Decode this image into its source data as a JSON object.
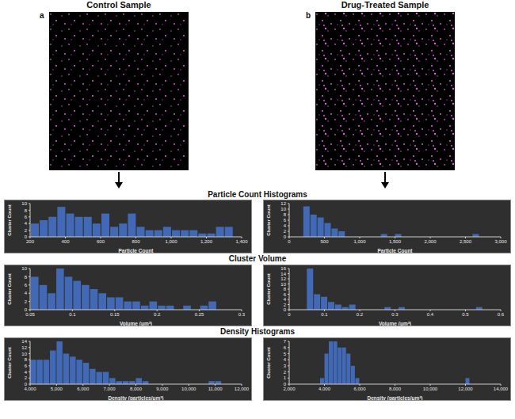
{
  "panels": [
    {
      "label": "a",
      "title": "Control Sample"
    },
    {
      "label": "b",
      "title": "Drug-Treated Sample"
    }
  ],
  "sections": [
    "Particle Count Histograms",
    "Cluster Volume",
    "Density Histograms"
  ],
  "chart_data": [
    {
      "type": "histogram",
      "x_label": "Particle Count",
      "y_label": "Cluster Count",
      "color": "#4169b5",
      "grid": false,
      "bins": [
        200,
        250,
        300,
        350,
        400,
        450,
        500,
        550,
        600,
        650,
        700,
        750,
        800,
        850,
        900,
        950,
        1000,
        1050,
        1100,
        1150,
        1200,
        1250,
        1300,
        1350
      ],
      "values": [
        4,
        5,
        6,
        9,
        7,
        6,
        6,
        4,
        7,
        3,
        4,
        7,
        3,
        2,
        2,
        3,
        2,
        2,
        2,
        1,
        1,
        3,
        3
      ],
      "xlim": [
        200,
        1400
      ],
      "xticks": [
        200,
        400,
        600,
        800,
        {
          "value": 1000,
          "label": "1,000"
        },
        {
          "value": 1200,
          "label": "1,200"
        },
        {
          "value": 1400,
          "label": "1,400"
        }
      ],
      "ylim": [
        0,
        10
      ],
      "yticks": [
        0,
        2,
        4,
        6,
        8,
        10
      ]
    },
    {
      "type": "histogram",
      "x_label": "Particle Count",
      "y_label": "Cluster Count",
      "color": "#4169b5",
      "grid": false,
      "bins": [
        200,
        300,
        400,
        500,
        600,
        700,
        800,
        900,
        1000,
        1100,
        1200,
        1300,
        1400,
        1500,
        1600,
        1700,
        1800,
        1900,
        2000,
        2100,
        2200,
        2300,
        2400,
        2500,
        2600,
        2700
      ],
      "values": [
        11,
        8,
        7,
        5,
        3,
        2,
        0,
        0,
        0,
        0,
        0,
        1,
        0,
        1,
        0,
        0,
        0,
        0,
        0,
        0,
        0,
        0,
        0,
        0,
        1
      ],
      "xlim": [
        0,
        3000
      ],
      "xticks": [
        0,
        500,
        {
          "value": 1000,
          "label": "1,000"
        },
        {
          "value": 1500,
          "label": "1,500"
        },
        {
          "value": 2000,
          "label": "2,000"
        },
        {
          "value": 2500,
          "label": "2,500"
        },
        {
          "value": 3000,
          "label": "3,000"
        }
      ],
      "ylim": [
        0,
        12
      ],
      "yticks": [
        0,
        2,
        4,
        6,
        8,
        10,
        12
      ]
    },
    {
      "type": "histogram",
      "x_label": "Volume (μm³)",
      "y_label": "Cluster Count",
      "color": "#4169b5",
      "grid": false,
      "bins": [
        0.05,
        0.06,
        0.07,
        0.08,
        0.09,
        0.1,
        0.11,
        0.12,
        0.13,
        0.14,
        0.15,
        0.16,
        0.17,
        0.18,
        0.19,
        0.2,
        0.21,
        0.22,
        0.23,
        0.24,
        0.25,
        0.26,
        0.27
      ],
      "values": [
        8,
        6,
        4,
        10,
        8,
        7,
        6,
        5,
        4,
        3,
        3,
        2,
        2,
        1,
        2,
        1,
        1,
        0,
        1,
        0,
        1,
        2
      ],
      "xlim": [
        0.05,
        0.3
      ],
      "xticks": [
        0.05,
        0.1,
        0.15,
        0.2,
        0.25,
        0.3
      ],
      "ylim": [
        0,
        10
      ],
      "yticks": [
        0,
        2,
        4,
        6,
        8,
        10
      ]
    },
    {
      "type": "histogram",
      "x_label": "Volume (μm³)",
      "y_label": "Cluster Count",
      "color": "#4169b5",
      "grid": false,
      "bins": [
        0.05,
        0.07,
        0.09,
        0.11,
        0.13,
        0.15,
        0.17,
        0.19,
        0.21,
        0.23,
        0.25,
        0.27,
        0.29,
        0.31,
        0.33,
        0.35,
        0.37,
        0.39,
        0.41,
        0.43,
        0.45,
        0.47,
        0.49,
        0.51,
        0.53,
        0.55
      ],
      "values": [
        16,
        6,
        5,
        3,
        2,
        1,
        2,
        0,
        0,
        0,
        0,
        1,
        0,
        1,
        0,
        0,
        0,
        0,
        0,
        0,
        0,
        0,
        0,
        0,
        1
      ],
      "xlim": [
        0,
        0.6
      ],
      "xticks": [
        0,
        0.1,
        0.2,
        0.3,
        0.4,
        0.5,
        0.6
      ],
      "ylim": [
        0,
        16
      ],
      "yticks": [
        0,
        2,
        4,
        6,
        8,
        10,
        12,
        14,
        16
      ]
    },
    {
      "type": "histogram",
      "x_label": "Density (particles/μm³)",
      "y_label": "Cluster Count",
      "color": "#4169b5",
      "grid": false,
      "bins": [
        4000,
        4250,
        4500,
        4750,
        5000,
        5250,
        5500,
        5750,
        6000,
        6250,
        6500,
        6750,
        7000,
        7250,
        7500,
        7750,
        8000,
        8250,
        8500,
        8750,
        9000,
        9250,
        9500,
        9750,
        10000,
        10250,
        10500,
        10750,
        11000,
        11250
      ],
      "values": [
        8,
        8,
        8,
        11,
        14,
        10,
        9,
        8,
        7,
        5,
        4,
        4,
        2,
        1,
        1,
        1,
        2,
        1,
        0,
        0,
        0,
        0,
        0,
        0,
        0,
        0,
        0,
        1,
        1
      ],
      "xlim": [
        4000,
        12000
      ],
      "xticks": [
        {
          "value": 4000,
          "label": "4,000"
        },
        {
          "value": 5000,
          "label": "5,000"
        },
        {
          "value": 6000,
          "label": "6,000"
        },
        {
          "value": 7000,
          "label": "7,000"
        },
        {
          "value": 8000,
          "label": "8,000"
        },
        {
          "value": 9000,
          "label": "9,000"
        },
        {
          "value": 10000,
          "label": "10,000"
        },
        {
          "value": 11000,
          "label": "11,000"
        },
        {
          "value": 12000,
          "label": "12,000"
        }
      ],
      "ylim": [
        0,
        14
      ],
      "yticks": [
        0,
        2,
        4,
        6,
        8,
        10,
        12,
        14
      ]
    },
    {
      "type": "histogram",
      "x_label": "Density (particles/μm³)",
      "y_label": "Cluster Count",
      "color": "#4169b5",
      "grid": false,
      "bins": [
        3750,
        4000,
        4250,
        4500,
        4750,
        5000,
        5250,
        5500,
        5750,
        6000,
        6250,
        6500,
        6750,
        7000,
        7250,
        7500,
        7750,
        8000,
        8250,
        8500,
        8750,
        9000,
        9250,
        9500,
        9750,
        10000,
        10250,
        10500,
        10750,
        11000,
        11250,
        11500,
        11750,
        12000,
        12250
      ],
      "values": [
        1,
        5,
        7,
        7,
        6,
        6,
        5,
        3,
        1,
        0,
        0,
        0,
        0,
        0,
        0,
        0,
        0,
        0,
        0,
        0,
        0,
        0,
        0,
        0,
        0,
        0,
        0,
        0,
        0,
        0,
        0,
        0,
        0,
        1
      ],
      "xlim": [
        2000,
        14000
      ],
      "xticks": [
        {
          "value": 2000,
          "label": "2,000"
        },
        {
          "value": 4000,
          "label": "4,000"
        },
        {
          "value": 6000,
          "label": "6,000"
        },
        {
          "value": 8000,
          "label": "8,000"
        },
        {
          "value": 10000,
          "label": "10,000"
        },
        {
          "value": 12000,
          "label": "12,000"
        },
        {
          "value": 14000,
          "label": "14,000"
        }
      ],
      "ylim": [
        0,
        7
      ],
      "yticks": [
        0,
        1,
        2,
        3,
        4,
        5,
        6,
        7
      ]
    }
  ]
}
